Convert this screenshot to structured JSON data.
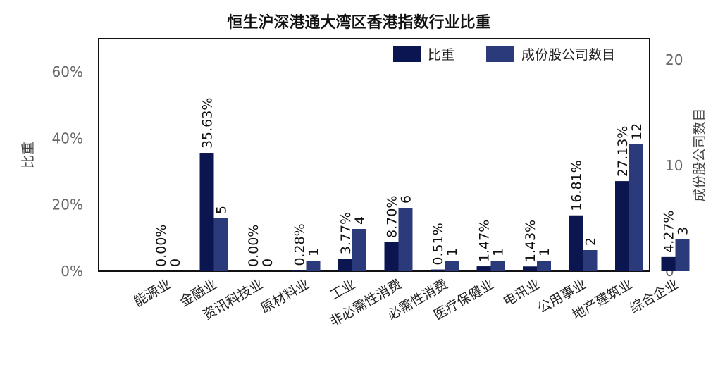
{
  "chart_data": {
    "type": "bar",
    "title": "恒生沪深港通大湾区香港指数行业比重",
    "categories": [
      "能源业",
      "金融业",
      "资讯科技业",
      "原材料业",
      "工业",
      "非必需性消费",
      "必需性消费",
      "医疗保健业",
      "电讯业",
      "公用事业",
      "地产建筑业",
      "综合企业"
    ],
    "series": [
      {
        "name": "比重",
        "axis": "left",
        "color": "#0b1550",
        "values": [
          0.0,
          35.63,
          0.0,
          0.28,
          3.77,
          8.7,
          0.51,
          1.47,
          1.43,
          16.81,
          27.13,
          4.27
        ],
        "labels": [
          "0.00%",
          "35.63%",
          "0.00%",
          "0.28%",
          "3.77%",
          "8.70%",
          "0.51%",
          "1.47%",
          "1.43%",
          "16.81%",
          "27.13%",
          "4.27%"
        ]
      },
      {
        "name": "成份股公司数目",
        "axis": "right",
        "color": "#2b3a7a",
        "values": [
          0,
          5,
          0,
          1,
          4,
          6,
          1,
          1,
          1,
          2,
          12,
          3
        ],
        "labels": [
          "0",
          "5",
          "0",
          "1",
          "4",
          "6",
          "1",
          "1",
          "1",
          "2",
          "12",
          "3"
        ]
      }
    ],
    "ylabel": "比重",
    "y2label": "成份股公司数目",
    "ylim": [
      0,
      70
    ],
    "yticks": [
      "0%",
      "20%",
      "40%",
      "60%"
    ],
    "y2lim": [
      0,
      22
    ],
    "y2ticks": [
      "0",
      "10",
      "20"
    ],
    "legend": "top-right",
    "grid": false
  }
}
